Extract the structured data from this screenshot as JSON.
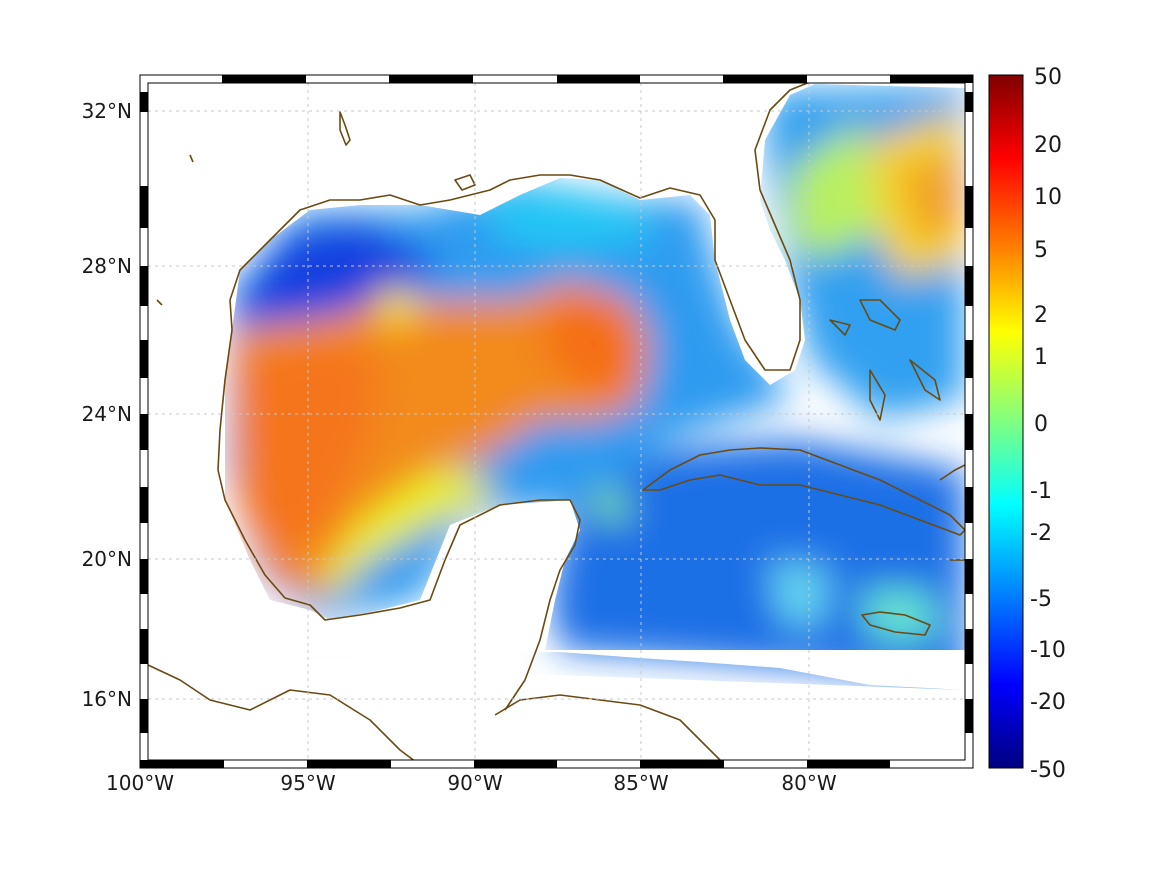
{
  "map": {
    "lon_ticks": [
      "100°W",
      "95°W",
      "90°W",
      "85°W",
      "80°W"
    ],
    "lat_ticks": [
      "32°N",
      "28°N",
      "24°N",
      "20°N",
      "16°N"
    ]
  },
  "colorbar": {
    "labels": [
      "50",
      "20",
      "10",
      "5",
      "2",
      "1",
      "0",
      "-1",
      "-2",
      "-5",
      "-10",
      "-20",
      "-50"
    ],
    "colormap": [
      "#7f0000",
      "#ff0000",
      "#ff8000",
      "#ffff00",
      "#80ff80",
      "#00ffff",
      "#0080ff",
      "#0000ff",
      "#00007f"
    ]
  },
  "colors": {
    "coastline": "#6b4a12",
    "frame": "#000000"
  }
}
